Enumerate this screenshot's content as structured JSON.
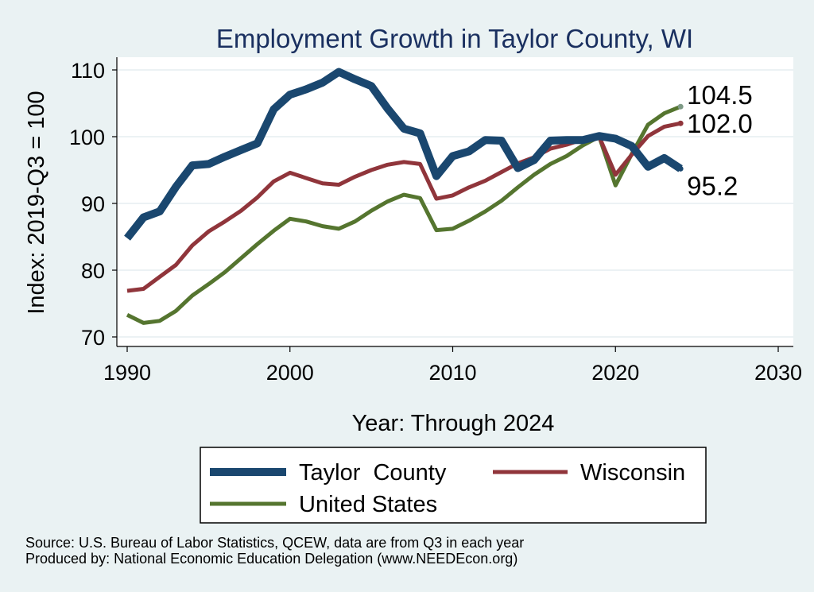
{
  "chart_data": {
    "type": "line",
    "title": "Employment Growth in Taylor County, WI",
    "xlabel": "Year: Through 2024",
    "ylabel": "Index: 2019-Q3 = 100",
    "xlim": [
      1990,
      2030
    ],
    "ylim": [
      70,
      110
    ],
    "xticks": [
      1990,
      2000,
      2010,
      2020,
      2030
    ],
    "yticks": [
      70,
      80,
      90,
      100,
      110
    ],
    "grid": true,
    "legend_position": "bottom",
    "x": [
      1990,
      1991,
      1992,
      1993,
      1994,
      1995,
      1996,
      1997,
      1998,
      1999,
      2000,
      2001,
      2002,
      2003,
      2004,
      2005,
      2006,
      2007,
      2008,
      2009,
      2010,
      2011,
      2012,
      2013,
      2014,
      2015,
      2016,
      2017,
      2018,
      2019,
      2020,
      2021,
      2022,
      2023,
      2024
    ],
    "series": [
      {
        "name": "Taylor  County",
        "color": "#1a476f",
        "values": [
          84.8,
          87.9,
          88.8,
          92.5,
          95.7,
          95.9,
          97.0,
          98.0,
          99.0,
          104.1,
          106.3,
          107.1,
          108.1,
          109.7,
          108.6,
          107.6,
          104.2,
          101.2,
          100.5,
          94.1,
          97.1,
          97.8,
          99.5,
          99.4,
          95.3,
          96.5,
          99.4,
          99.5,
          99.5,
          100.1,
          99.7,
          98.6,
          95.5,
          96.8,
          95.2
        ],
        "end_label": "95.2"
      },
      {
        "name": "Wisconsin",
        "color": "#90353b",
        "values": [
          76.9,
          77.2,
          79.0,
          80.8,
          83.7,
          85.8,
          87.3,
          88.9,
          90.9,
          93.3,
          94.6,
          93.8,
          93.0,
          92.8,
          94.0,
          95.0,
          95.8,
          96.2,
          95.9,
          90.7,
          91.2,
          92.4,
          93.4,
          94.7,
          96.0,
          96.9,
          98.2,
          98.8,
          99.6,
          100.0,
          94.3,
          97.3,
          100.1,
          101.5,
          102.0
        ],
        "end_label": "102.0"
      },
      {
        "name": "United States",
        "color": "#55752f",
        "values": [
          73.3,
          72.1,
          72.4,
          73.9,
          76.2,
          77.9,
          79.7,
          81.8,
          83.9,
          85.9,
          87.7,
          87.3,
          86.6,
          86.2,
          87.3,
          88.9,
          90.3,
          91.3,
          90.8,
          86.0,
          86.2,
          87.4,
          88.8,
          90.4,
          92.4,
          94.3,
          95.9,
          97.1,
          98.7,
          100.0,
          92.7,
          97.4,
          101.8,
          103.5,
          104.5
        ],
        "end_label": "104.5"
      }
    ]
  },
  "footer": {
    "source": "Source: U.S. Bureau of Labor Statistics, QCEW, data are from Q3 in each year",
    "produced": "Produced by: National Economic Education Delegation (www.NEEDEcon.org)"
  }
}
